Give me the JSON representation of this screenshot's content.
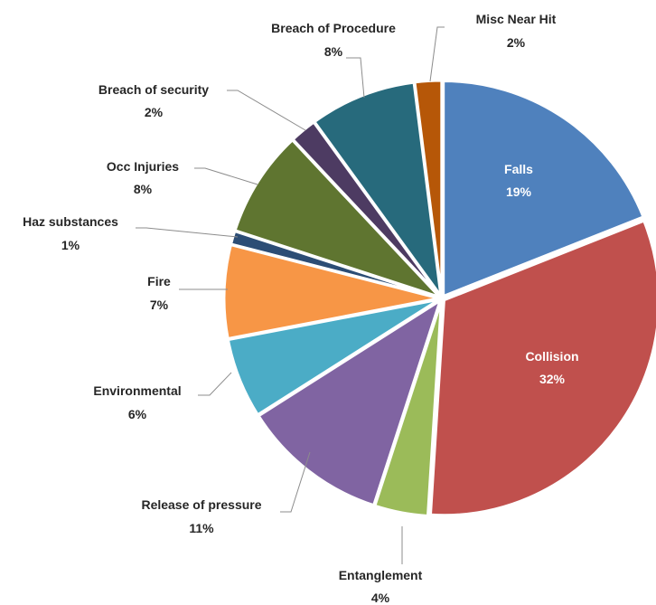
{
  "chart_data": {
    "type": "pie",
    "title": "",
    "slices": [
      {
        "label": "Falls",
        "value": 19,
        "value_label": "19%",
        "color": "#4f81bd"
      },
      {
        "label": "Collision",
        "value": 32,
        "value_label": "32%",
        "color": "#c0504d"
      },
      {
        "label": "Entanglement",
        "value": 4,
        "value_label": "4%",
        "color": "#9bbb59"
      },
      {
        "label": "Release of pressure",
        "value": 11,
        "value_label": "11%",
        "color": "#8064a2"
      },
      {
        "label": "Environmental",
        "value": 6,
        "value_label": "6%",
        "color": "#4bacc6"
      },
      {
        "label": "Fire",
        "value": 7,
        "value_label": "7%",
        "color": "#f79646"
      },
      {
        "label": "Haz substances",
        "value": 1,
        "value_label": "1%",
        "color": "#2c4d75"
      },
      {
        "label": "Occ Injuries",
        "value": 8,
        "value_label": "8%",
        "color": "#5f7530"
      },
      {
        "label": "Breach of security",
        "value": 2,
        "value_label": "2%",
        "color": "#4d3b62"
      },
      {
        "label": "Breach of Procedure",
        "value": 8,
        "value_label": "8%",
        "color": "#276a7c"
      },
      {
        "label": "Misc Near Hit",
        "value": 2,
        "value_label": "2%",
        "color": "#b65708"
      }
    ],
    "legend": "none",
    "exploded": true
  }
}
